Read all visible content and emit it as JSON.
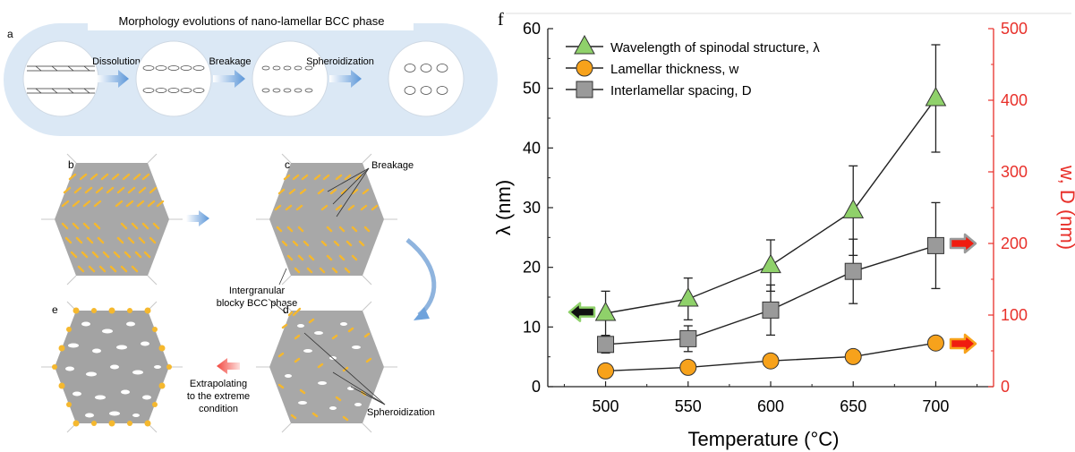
{
  "schematic": {
    "panel_a": {
      "label": "a",
      "title": "Morphology evolutions of nano-lamellar BCC phase",
      "steps": [
        "Dissolution",
        "Breakage",
        "Spheroidization"
      ]
    },
    "panel_labels": {
      "b": "b",
      "c": "c",
      "d": "d",
      "e": "e"
    },
    "annotations": {
      "breakage": "Breakage",
      "intergranular_line1": "Intergranular",
      "intergranular_line2": "blocky BCC phase",
      "spheroidization": "Spheroidization",
      "extrapolating_line1": "Extrapolating",
      "extrapolating_line2": "to the extreme",
      "extrapolating_line3": "condition"
    },
    "colors": {
      "capsule": "#dbe8f5",
      "matrix": "#9e9e9e",
      "bcc": "#f5b82e",
      "arrow_blue": "#6fa3dc",
      "arrow_red": "#f2473f"
    }
  },
  "chart_data": {
    "panel_label": "f",
    "type": "line",
    "x": [
      500,
      550,
      600,
      650,
      700
    ],
    "xlabel": "Temperature (°C)",
    "xlim": [
      465,
      735
    ],
    "xticks": [
      500,
      550,
      600,
      650,
      700
    ],
    "ylabel_left": "λ (nm)",
    "ylim_left": [
      0,
      60
    ],
    "yticks_left": [
      0,
      10,
      20,
      30,
      40,
      50,
      60
    ],
    "ylabel_right": "w, D (nm)",
    "ylim_right": [
      0,
      500
    ],
    "yticks_right": [
      0,
      100,
      200,
      300,
      400,
      500
    ],
    "series": [
      {
        "name": "Wavelength of spinodal structure, λ",
        "axis": "left",
        "marker": "triangle",
        "color": "#8fd16a",
        "values": [
          12.3,
          14.7,
          20.3,
          29.5,
          48.3
        ],
        "errors": [
          3.7,
          3.5,
          4.3,
          7.5,
          9.0
        ]
      },
      {
        "name": "Lamellar thickness, w",
        "axis": "right",
        "marker": "circle",
        "color": "#f7a21b",
        "values": [
          22,
          27,
          36,
          42,
          61
        ],
        "errors": [
          8,
          8,
          7,
          7,
          6
        ]
      },
      {
        "name": "Interlamellar spacing, D",
        "axis": "right",
        "marker": "square",
        "color": "#9a9a9a",
        "values": [
          59,
          67,
          107,
          161,
          197
        ],
        "errors": [
          12,
          18,
          35,
          45,
          60
        ]
      }
    ],
    "axis_arrows": {
      "left_arrow_color": "#111111",
      "right_arrow_color": "#f01c10"
    },
    "legend_position": "top-left",
    "right_axis_color": "#e8302a",
    "grid": false
  }
}
